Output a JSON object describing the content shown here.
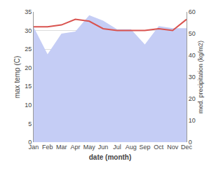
{
  "chart_data": {
    "type": "line",
    "xlabel": "date (month)",
    "ylabel": "max temp (C)",
    "y2label": "med. precipitation (kg/m2)",
    "categories": [
      "Jan",
      "Feb",
      "Mar",
      "Apr",
      "May",
      "Jun",
      "Jul",
      "Aug",
      "Sep",
      "Oct",
      "Nov",
      "Dec"
    ],
    "series": [
      {
        "type": "line",
        "color": "#d9534f",
        "values": [
          31.0,
          31.0,
          31.5,
          33.0,
          32.5,
          30.5,
          30.0,
          30.0,
          30.0,
          30.5,
          30.0,
          33.0
        ]
      },
      {
        "type": "area",
        "axis": "y2",
        "color": "#c5cdf5",
        "values": [
          53.0,
          40.5,
          50.0,
          51.0,
          58.5,
          56.0,
          52.0,
          52.0,
          45.0,
          53.5,
          52.5,
          52.5
        ]
      }
    ],
    "ylim": [
      0,
      35
    ],
    "yticks": [
      0,
      5,
      10,
      15,
      20,
      25,
      30,
      35
    ],
    "y2lim": [
      0,
      60
    ],
    "y2ticks": [
      0,
      10,
      20,
      30,
      40,
      50,
      60
    ],
    "grid": true
  }
}
